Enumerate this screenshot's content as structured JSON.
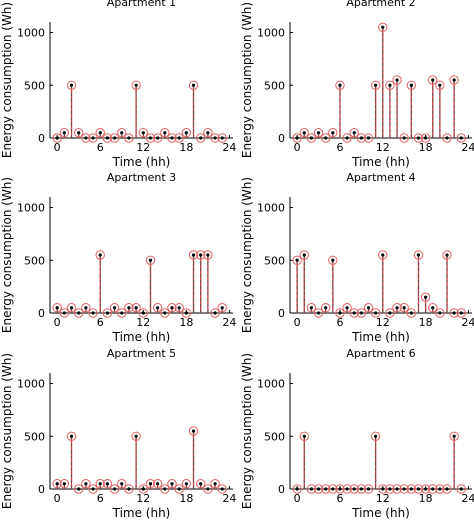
{
  "chart_data": [
    {
      "type": "stem",
      "title": "Apartment 1",
      "xlabel": "Time (hh)",
      "ylabel": "Energy consumption (Wh)",
      "xlim": [
        -1,
        24.5
      ],
      "ylim": [
        0,
        1100
      ],
      "xticks": [
        "0",
        "6",
        "12",
        "18",
        "24"
      ],
      "yticks": [
        "0",
        "500",
        "1000"
      ],
      "grid": false,
      "series": [
        {
          "x": [
            0,
            1,
            2,
            3,
            4,
            5,
            6,
            7,
            8,
            9,
            10,
            11,
            12,
            13,
            14,
            15,
            16,
            17,
            18,
            19,
            20,
            21,
            22,
            23
          ],
          "values": [
            0,
            50,
            500,
            50,
            0,
            0,
            50,
            0,
            0,
            50,
            0,
            500,
            50,
            0,
            0,
            50,
            0,
            0,
            50,
            500,
            0,
            50,
            0,
            0
          ]
        }
      ]
    },
    {
      "type": "stem",
      "title": "Apartment 2",
      "xlabel": "Time (hh)",
      "ylabel": "Energy consumption (Wh)",
      "xlim": [
        -1,
        24.5
      ],
      "ylim": [
        0,
        1100
      ],
      "xticks": [
        "0",
        "6",
        "12",
        "18",
        "24"
      ],
      "yticks": [
        "0",
        "500",
        "1000"
      ],
      "grid": false,
      "series": [
        {
          "x": [
            0,
            1,
            2,
            3,
            4,
            5,
            6,
            7,
            8,
            9,
            10,
            11,
            12,
            13,
            14,
            15,
            16,
            17,
            18,
            19,
            20,
            21,
            22,
            23
          ],
          "values": [
            0,
            50,
            0,
            50,
            0,
            50,
            500,
            0,
            50,
            0,
            0,
            500,
            1050,
            500,
            550,
            0,
            500,
            0,
            0,
            550,
            500,
            0,
            550,
            0
          ]
        }
      ]
    },
    {
      "type": "stem",
      "title": "Apartment 3",
      "xlabel": "Time (hh)",
      "ylabel": "Energy consumption (Wh)",
      "xlim": [
        -1,
        24.5
      ],
      "ylim": [
        0,
        1100
      ],
      "xticks": [
        "0",
        "6",
        "12",
        "18",
        "24"
      ],
      "yticks": [
        "0",
        "500",
        "1000"
      ],
      "grid": false,
      "series": [
        {
          "x": [
            0,
            1,
            2,
            3,
            4,
            5,
            6,
            7,
            8,
            9,
            10,
            11,
            12,
            13,
            14,
            15,
            16,
            17,
            18,
            19,
            20,
            21,
            22,
            23
          ],
          "values": [
            50,
            0,
            50,
            0,
            50,
            0,
            550,
            0,
            50,
            0,
            50,
            50,
            0,
            500,
            50,
            0,
            50,
            50,
            0,
            550,
            550,
            550,
            0,
            50
          ]
        }
      ]
    },
    {
      "type": "stem",
      "title": "Apartment 4",
      "xlabel": "Time (hh)",
      "ylabel": "Energy consumption (Wh)",
      "xlim": [
        -1,
        24.5
      ],
      "ylim": [
        0,
        1100
      ],
      "xticks": [
        "0",
        "6",
        "12",
        "18",
        "24"
      ],
      "yticks": [
        "0",
        "500",
        "1000"
      ],
      "grid": false,
      "series": [
        {
          "x": [
            0,
            1,
            2,
            3,
            4,
            5,
            6,
            7,
            8,
            9,
            10,
            11,
            12,
            13,
            14,
            15,
            16,
            17,
            18,
            19,
            20,
            21,
            22,
            23
          ],
          "values": [
            500,
            550,
            50,
            0,
            50,
            500,
            0,
            50,
            0,
            0,
            50,
            0,
            550,
            0,
            50,
            50,
            0,
            550,
            150,
            50,
            0,
            550,
            0,
            0
          ]
        }
      ]
    },
    {
      "type": "stem",
      "title": "Apartment 5",
      "xlabel": "Time (hh)",
      "ylabel": "Energy consumption (Wh)",
      "xlim": [
        -1,
        24.5
      ],
      "ylim": [
        0,
        1100
      ],
      "xticks": [
        "0",
        "6",
        "12",
        "18",
        "24"
      ],
      "yticks": [
        "0",
        "500",
        "1000"
      ],
      "grid": false,
      "series": [
        {
          "x": [
            0,
            1,
            2,
            3,
            4,
            5,
            6,
            7,
            8,
            9,
            10,
            11,
            12,
            13,
            14,
            15,
            16,
            17,
            18,
            19,
            20,
            21,
            22,
            23
          ],
          "values": [
            50,
            50,
            500,
            0,
            50,
            0,
            50,
            50,
            0,
            50,
            0,
            500,
            0,
            50,
            50,
            0,
            50,
            0,
            50,
            550,
            50,
            0,
            50,
            0
          ]
        }
      ]
    },
    {
      "type": "stem",
      "title": "Apartment 6",
      "xlabel": "Time (hh)",
      "ylabel": "Energy consumption (Wh)",
      "xlim": [
        -1,
        24.5
      ],
      "ylim": [
        0,
        1100
      ],
      "xticks": [
        "0",
        "6",
        "12",
        "18",
        "24"
      ],
      "yticks": [
        "0",
        "500",
        "1000"
      ],
      "grid": false,
      "series": [
        {
          "x": [
            0,
            1,
            2,
            3,
            4,
            5,
            6,
            7,
            8,
            9,
            10,
            11,
            12,
            13,
            14,
            15,
            16,
            17,
            18,
            19,
            20,
            21,
            22,
            23
          ],
          "values": [
            0,
            500,
            0,
            0,
            0,
            0,
            0,
            0,
            0,
            0,
            0,
            500,
            0,
            0,
            0,
            0,
            0,
            0,
            0,
            0,
            0,
            0,
            500,
            0
          ]
        }
      ]
    }
  ],
  "colors": {
    "stem": "#c44848",
    "stem_dash": "#4a4a4a",
    "marker_ring": "#e06060",
    "marker_dot": "#000000",
    "axis": "#000000"
  }
}
